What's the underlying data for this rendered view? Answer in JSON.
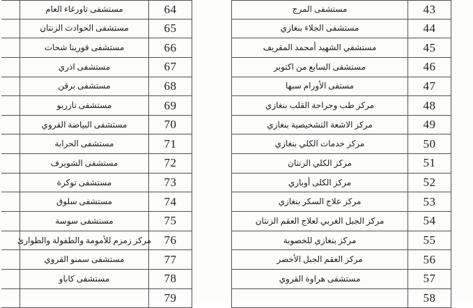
{
  "colors": {
    "border": "#4f4f4f",
    "text": "#1c1c1c",
    "background": "#fdfdfc"
  },
  "left_table": {
    "rows": [
      {
        "name": "مستشفى تاورغاء العام",
        "number": "64"
      },
      {
        "name": "مستشفى الحوادث الزنتان",
        "number": "65"
      },
      {
        "name": "مستشفى قورينا شحات",
        "number": "66"
      },
      {
        "name": "مستشفى اذري",
        "number": "67"
      },
      {
        "name": "مستشفى برقن",
        "number": "68"
      },
      {
        "name": "مستشفى تازربو",
        "number": "69"
      },
      {
        "name": "مستشفى البياضة القروي",
        "number": "70"
      },
      {
        "name": "مستشفى الحرابة",
        "number": "71"
      },
      {
        "name": "مستشفى الشويرف",
        "number": "72"
      },
      {
        "name": "مستشفى توكرة",
        "number": "73"
      },
      {
        "name": "مستشفى سلوق",
        "number": "74"
      },
      {
        "name": "مستشفى سوسة",
        "number": "75"
      },
      {
        "name": "مركز زمزم للأمومة والطفولة والطوارئ",
        "number": "76"
      },
      {
        "name": "مستشفى سمنو القروي",
        "number": "77"
      },
      {
        "name": "مستشفى كاباو",
        "number": "78"
      },
      {
        "name": "",
        "number": "79"
      }
    ]
  },
  "right_table": {
    "rows": [
      {
        "name": "مستشفى المرج",
        "number": "43"
      },
      {
        "name": "مستشفى الجلاء بنغازي",
        "number": "44"
      },
      {
        "name": "مستشفي الشهيد أمحمد المقريف",
        "number": "45"
      },
      {
        "name": "مستشفى السابع من اكتوبر",
        "number": "46"
      },
      {
        "name": "مستفى الأورام سبها",
        "number": "47"
      },
      {
        "name": "مركز طب وجراحة القلب بنغازي",
        "number": "48"
      },
      {
        "name": "مركز الاشعة التشخيصية بنغازي",
        "number": "49"
      },
      {
        "name": "مركز خدمات الكلي بنغازي",
        "number": "50"
      },
      {
        "name": "مركز الكلي الزنتان",
        "number": "51"
      },
      {
        "name": "مركز الكلى أوباري",
        "number": "52"
      },
      {
        "name": "مركز علاج السكر بنغازي",
        "number": "53"
      },
      {
        "name": "مركز الجبل الغربي لعلاج العقم الزنتان",
        "number": "54"
      },
      {
        "name": "مركز بنغازي للخصوبة",
        "number": "55"
      },
      {
        "name": "مركز العقم الجبل الأخضر",
        "number": "56"
      },
      {
        "name": "مستشفى هراوة القروي",
        "number": "57"
      },
      {
        "name": "",
        "number": "58"
      }
    ]
  }
}
